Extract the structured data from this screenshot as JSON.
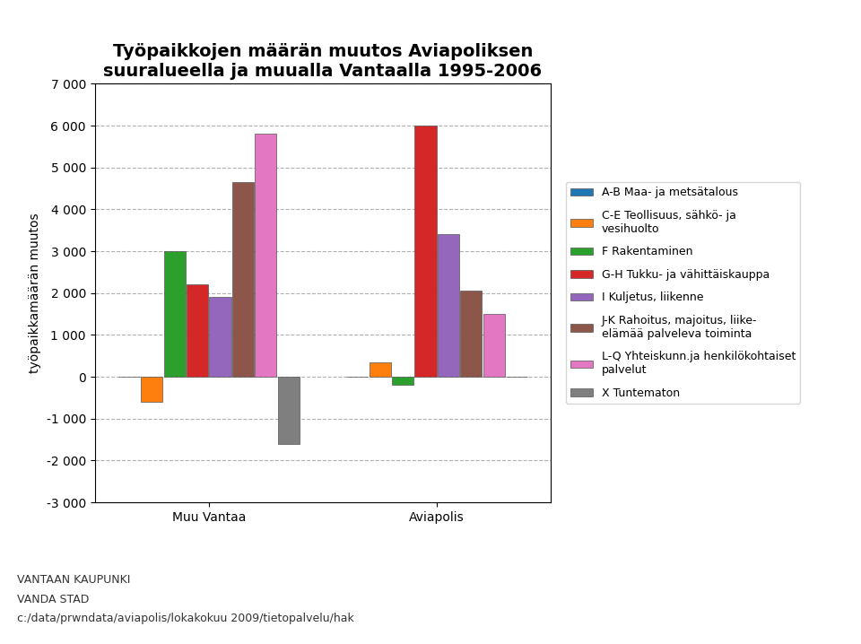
{
  "chart_data": {
    "type": "bar",
    "title": "Työpaikkojen määrän muutos Aviapoliksen\nsuuralueella ja muualla Vantaalla 1995-2006",
    "y_label": "työpaikkamäärän muutos",
    "categories": [
      "Muu Vantaa",
      "Aviapolis"
    ],
    "series": [
      {
        "name": "A-B Maa- ja metsätalous",
        "values": [
          0,
          0
        ]
      },
      {
        "name": "C-E Teollisuus, sähkö- ja\nvesihuolto",
        "values": [
          -600,
          350
        ]
      },
      {
        "name": "F Rakentaminen",
        "values": [
          3000,
          -200
        ]
      },
      {
        "name": "G-H Tukku- ja vähittäiskauppa",
        "values": [
          2200,
          6000
        ]
      },
      {
        "name": "I Kuljetus, liikenne",
        "values": [
          1900,
          3400
        ]
      },
      {
        "name": "J-K Rahoitus, majoitus, liike-\nelämää palveleva toiminta",
        "values": [
          4650,
          2050
        ]
      },
      {
        "name": "L-Q Yhteiskunn.ja henkilökohtaiset\npalvelut",
        "values": [
          5800,
          1500
        ]
      },
      {
        "name": "X Tuntematon",
        "values": [
          -1600,
          0
        ]
      }
    ],
    "ylim": [
      -3000,
      7000
    ],
    "yticks": [
      {
        "value": -3000,
        "label": "-3 000"
      },
      {
        "value": -2000,
        "label": "-2 000"
      },
      {
        "value": -1000,
        "label": "-1 000"
      },
      0,
      {
        "value": 1000,
        "label": "1 000"
      },
      {
        "value": 2000,
        "label": "2 000"
      },
      {
        "value": 3000,
        "label": "3 000"
      },
      {
        "value": 4000,
        "label": "4 000"
      },
      {
        "value": 5000,
        "label": "5 000"
      },
      {
        "value": 6000,
        "label": "6 000"
      },
      {
        "value": 7000,
        "label": "7 000"
      }
    ],
    "grid": true,
    "legend": "center left",
    "annotations": [
      "VANTAAN KAUPUNKI",
      "VANDA STAD",
      "c:/data/prwndata/aviapolis/lokakokuu 2009/tietopalvelu/hak"
    ]
  }
}
